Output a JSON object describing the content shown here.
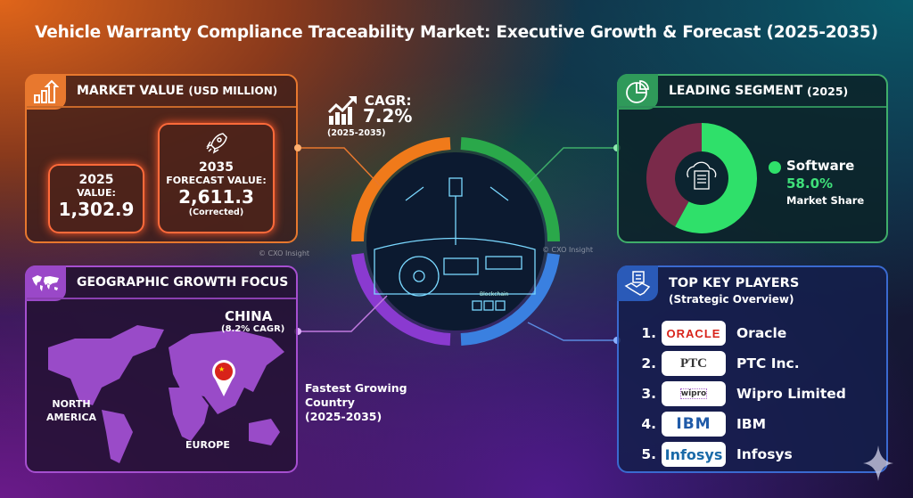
{
  "title": "Vehicle Warranty Compliance Traceability Market: Executive Growth & Forecast (2025-2035)",
  "market_value": {
    "header": "MARKET VALUE",
    "header_unit": "(USD MILLION)",
    "icon": "bar-chart-arrow-icon",
    "current": {
      "year": "2025",
      "label": "VALUE:",
      "value": "1,302.9"
    },
    "forecast": {
      "year": "2035",
      "label": "FORECAST VALUE:",
      "value": "2,611.3",
      "note": "(Corrected)",
      "icon": "rocket-icon"
    }
  },
  "cagr": {
    "label": "CAGR:",
    "value": "7.2%",
    "period": "(2025-2035)"
  },
  "center": {
    "dashboard_labels": [
      "Blockchain"
    ]
  },
  "leading_segment": {
    "header": "LEADING SEGMENT",
    "header_year": "(2025)",
    "segment": "Software",
    "share": "58.0%",
    "share_label": "Market Share",
    "share_value": 58.0,
    "colors": {
      "segment": "#2fe06a",
      "other": "#7a2a4a"
    }
  },
  "geo": {
    "header": "GEOGRAPHIC GROWTH FOCUS",
    "country": "CHINA",
    "country_cagr": "(8.2% CAGR)",
    "regions": [
      "NORTH AMERICA",
      "EUROPE"
    ],
    "callout": [
      "Fastest Growing",
      "Country",
      "(2025-2035)"
    ]
  },
  "key_players": {
    "header": "TOP KEY PLAYERS",
    "subheader": "(Strategic Overview)",
    "items": [
      {
        "rank": "1.",
        "logo": "ORACLE",
        "name": "Oracle"
      },
      {
        "rank": "2.",
        "logo": "PTC",
        "name": "PTC Inc."
      },
      {
        "rank": "3.",
        "logo": "wipro",
        "name": "Wipro Limited"
      },
      {
        "rank": "4.",
        "logo": "IBM",
        "name": "IBM"
      },
      {
        "rank": "5.",
        "logo": "Infosys",
        "name": "Infosys"
      }
    ]
  },
  "watermark": "© CXO Insight",
  "accents": {
    "orange": "#e8782e",
    "green": "#3fae6a",
    "purple": "#a64fd0",
    "blue": "#3a6ad0"
  }
}
